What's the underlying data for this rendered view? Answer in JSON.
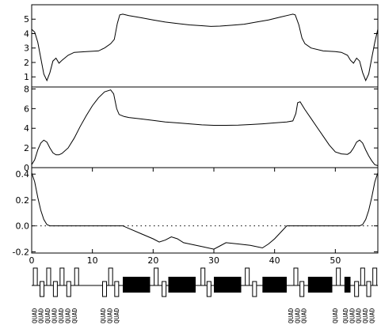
{
  "chart_data": [
    {
      "type": "line",
      "panel": "top",
      "title": "",
      "xlabel": "",
      "ylabel": "",
      "xlim": [
        0,
        57
      ],
      "ylim": [
        0.3,
        6.0
      ],
      "yticks": [
        1,
        2,
        3,
        4,
        5
      ],
      "series": [
        {
          "x": [
            0,
            0.5,
            1,
            1.5,
            2,
            2.5,
            3,
            3.5,
            4,
            4.5,
            5,
            6,
            7,
            9,
            11,
            12,
            13,
            13.6,
            14.1,
            14.5,
            15,
            16,
            18,
            20,
            22,
            24,
            26,
            28,
            29.5,
            31,
            33,
            35,
            37,
            39,
            41,
            42.5,
            43,
            43.4,
            44,
            44.5,
            45,
            46,
            48,
            50,
            51,
            52,
            52.5,
            53,
            53.5,
            54,
            54.5,
            55,
            55.5,
            56,
            56.5,
            57
          ],
          "y": [
            4.3,
            4.1,
            3.4,
            2.3,
            1.2,
            0.75,
            1.3,
            2.1,
            2.3,
            1.95,
            2.15,
            2.5,
            2.7,
            2.75,
            2.8,
            3.0,
            3.3,
            3.6,
            4.7,
            5.3,
            5.35,
            5.25,
            5.1,
            4.95,
            4.8,
            4.7,
            4.6,
            4.55,
            4.5,
            4.52,
            4.58,
            4.65,
            4.8,
            4.95,
            5.15,
            5.3,
            5.35,
            5.3,
            4.6,
            3.7,
            3.3,
            3.0,
            2.8,
            2.75,
            2.7,
            2.5,
            2.15,
            1.95,
            2.3,
            2.1,
            1.3,
            0.75,
            1.2,
            2.3,
            3.4,
            4.3
          ]
        }
      ]
    },
    {
      "type": "line",
      "panel": "middle",
      "title": "",
      "xlabel": "",
      "ylabel": "",
      "xlim": [
        0,
        57
      ],
      "ylim": [
        0,
        8.2
      ],
      "yticks": [
        0,
        2,
        4,
        6,
        8
      ],
      "series": [
        {
          "x": [
            0,
            0.5,
            1,
            1.5,
            2,
            2.5,
            3,
            3.5,
            4,
            4.5,
            5,
            6,
            7,
            8,
            9,
            10,
            11,
            12,
            13,
            13.5,
            14,
            14.4,
            14.8,
            15.2,
            16,
            18,
            20,
            22,
            24,
            26,
            28,
            30,
            32,
            34,
            36,
            38,
            40,
            42,
            43,
            43.5,
            43.8,
            44.2,
            44.6,
            45,
            46,
            47,
            48,
            49,
            50,
            51,
            52,
            52.5,
            53,
            53.5,
            54,
            54.5,
            55,
            55.5,
            56,
            56.5,
            57
          ],
          "y": [
            0.3,
            0.8,
            1.8,
            2.5,
            2.8,
            2.6,
            2.0,
            1.5,
            1.3,
            1.3,
            1.45,
            2.0,
            3.0,
            4.2,
            5.3,
            6.3,
            7.1,
            7.7,
            7.9,
            7.5,
            6.0,
            5.4,
            5.3,
            5.2,
            5.1,
            4.95,
            4.8,
            4.65,
            4.55,
            4.45,
            4.35,
            4.3,
            4.3,
            4.32,
            4.38,
            4.45,
            4.55,
            4.65,
            4.75,
            5.5,
            6.6,
            6.7,
            6.3,
            5.9,
            5.0,
            4.1,
            3.2,
            2.3,
            1.6,
            1.4,
            1.35,
            1.55,
            2.0,
            2.6,
            2.8,
            2.5,
            1.8,
            1.2,
            0.7,
            0.3,
            0.2
          ]
        }
      ]
    },
    {
      "type": "line",
      "panel": "bottom",
      "title": "",
      "xlabel": "",
      "ylabel": "",
      "xlim": [
        0,
        57
      ],
      "ylim": [
        -0.21,
        0.45
      ],
      "yticks": [
        -0.2,
        0.0,
        0.2,
        0.4
      ],
      "ytick_labels": [
        "-0.2",
        "0.0",
        "0.2",
        "0.4"
      ],
      "xticks": [
        0,
        10,
        20,
        30,
        40,
        50
      ],
      "reference_line": 0.0,
      "series": [
        {
          "x": [
            0,
            0.5,
            1,
            1.5,
            2,
            2.5,
            3,
            15,
            16,
            18,
            20,
            21,
            22,
            23,
            24,
            25,
            26,
            28,
            30,
            31,
            32,
            34,
            36,
            38,
            39,
            40,
            42,
            54,
            54.5,
            55,
            55.5,
            56,
            56.5,
            57
          ],
          "y": [
            0.41,
            0.34,
            0.22,
            0.12,
            0.05,
            0.01,
            0.0,
            0.0,
            -0.02,
            -0.06,
            -0.1,
            -0.125,
            -0.11,
            -0.085,
            -0.1,
            -0.13,
            -0.14,
            -0.16,
            -0.18,
            -0.155,
            -0.13,
            -0.14,
            -0.15,
            -0.17,
            -0.14,
            -0.1,
            0.0,
            0.0,
            0.01,
            0.05,
            0.12,
            0.22,
            0.34,
            0.41
          ]
        }
      ]
    }
  ],
  "lattice": {
    "xlim": [
      0,
      57
    ],
    "dipoles": [
      [
        15.0,
        19.5
      ],
      [
        22.5,
        27.0
      ],
      [
        30.0,
        34.5
      ],
      [
        38.0,
        42.0
      ],
      [
        45.5,
        49.5
      ],
      [
        51.5,
        52.5
      ]
    ],
    "quads": [
      0.6,
      1.7,
      2.8,
      3.9,
      5.0,
      6.1,
      7.4,
      12.0,
      13.0,
      14.0,
      20.5,
      21.8,
      28.2,
      29.2,
      35.5,
      36.7,
      43.5,
      44.5,
      50.5,
      53.5,
      54.5,
      55.5,
      56.5
    ],
    "labels": [
      {
        "x": 0.3,
        "text": "QUAD"
      },
      {
        "x": 1.4,
        "text": "QUAD"
      },
      {
        "x": 2.5,
        "text": "QUAD"
      },
      {
        "x": 3.6,
        "text": "QUAD"
      },
      {
        "x": 4.7,
        "text": "QUAD"
      },
      {
        "x": 5.8,
        "text": "QUAD"
      },
      {
        "x": 6.9,
        "text": "QUAD"
      },
      {
        "x": 11.6,
        "text": "QUAD"
      },
      {
        "x": 12.7,
        "text": "QUAD"
      },
      {
        "x": 13.8,
        "text": "QUAD"
      },
      {
        "x": 42.5,
        "text": "QUAD"
      },
      {
        "x": 43.6,
        "text": "QUAD"
      },
      {
        "x": 44.7,
        "text": "QUAD"
      },
      {
        "x": 49.8,
        "text": "QUAD"
      },
      {
        "x": 51.5,
        "text": "QUAD"
      },
      {
        "x": 52.6,
        "text": "QUAD"
      },
      {
        "x": 53.7,
        "text": "QUAD"
      },
      {
        "x": 54.8,
        "text": "QUAD"
      },
      {
        "x": 55.9,
        "text": "QUAD"
      }
    ]
  },
  "colors": {
    "line": "#000000",
    "background": "#ffffff"
  }
}
